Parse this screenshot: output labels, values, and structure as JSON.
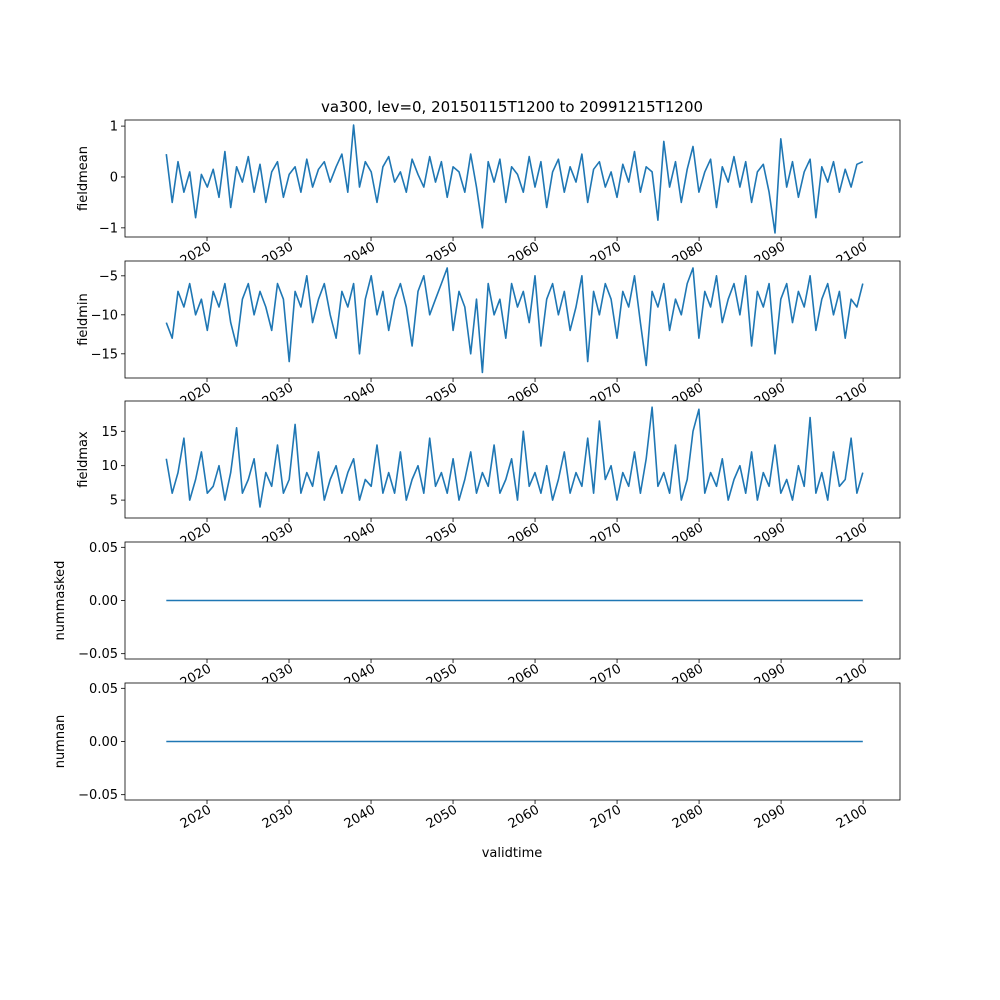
{
  "chart_data": {
    "type": "line",
    "title": "va300, lev=0, 20150115T1200 to 20991215T1200",
    "xlabel": "validtime",
    "x_range": [
      2015.04,
      2099.96
    ],
    "xlim": [
      2010.0,
      2104.5
    ],
    "xticks": [
      2020,
      2030,
      2040,
      2050,
      2060,
      2070,
      2080,
      2090,
      2100
    ],
    "xtick_labels": [
      "2020",
      "2030",
      "2040",
      "2050",
      "2060",
      "2070",
      "2080",
      "2090",
      "2100"
    ],
    "color": "#1f77b4",
    "panels": [
      {
        "ylabel": "fieldmean",
        "ylim": [
          -1.18,
          1.12
        ],
        "yticks": [
          1,
          0,
          -1
        ],
        "ytick_labels": [
          "1",
          "0",
          "−1"
        ],
        "values": [
          0.45,
          -0.5,
          0.3,
          -0.3,
          0.1,
          -0.8,
          0.05,
          -0.2,
          0.15,
          -0.4,
          0.5,
          -0.6,
          0.2,
          -0.1,
          0.4,
          -0.3,
          0.25,
          -0.5,
          0.1,
          0.3,
          -0.4,
          0.05,
          0.2,
          -0.3,
          0.35,
          -0.2,
          0.15,
          0.3,
          -0.1,
          0.2,
          0.45,
          -0.3,
          1.02,
          -0.2,
          0.3,
          0.1,
          -0.5,
          0.2,
          0.4,
          -0.1,
          0.1,
          -0.3,
          0.35,
          0.05,
          -0.2,
          0.4,
          -0.1,
          0.3,
          -0.4,
          0.2,
          0.1,
          -0.3,
          0.45,
          -0.2,
          -1.0,
          0.3,
          -0.1,
          0.35,
          -0.5,
          0.2,
          0.05,
          -0.3,
          0.4,
          -0.2,
          0.3,
          -0.6,
          0.1,
          0.35,
          -0.3,
          0.2,
          -0.1,
          0.45,
          -0.5,
          0.15,
          0.3,
          -0.2,
          0.1,
          -0.4,
          0.25,
          -0.1,
          0.5,
          -0.3,
          0.2,
          0.1,
          -0.85,
          0.7,
          -0.2,
          0.3,
          -0.5,
          0.15,
          0.6,
          -0.3,
          0.1,
          0.35,
          -0.6,
          0.2,
          -0.1,
          0.4,
          -0.2,
          0.3,
          -0.5,
          0.1,
          0.25,
          -0.3,
          -1.1,
          0.75,
          -0.2,
          0.3,
          -0.4,
          0.1,
          0.35,
          -0.8,
          0.2,
          -0.1,
          0.3,
          -0.3,
          0.15,
          -0.2,
          0.25,
          0.3
        ]
      },
      {
        "ylabel": "fieldmin",
        "ylim": [
          -18.1,
          -3.1
        ],
        "yticks": [
          -5,
          -10,
          -15
        ],
        "ytick_labels": [
          "−5",
          "−10",
          "−15"
        ],
        "values": [
          -11,
          -13,
          -7,
          -9,
          -6,
          -10,
          -8,
          -12,
          -7,
          -9,
          -6,
          -11,
          -14,
          -8,
          -6,
          -10,
          -7,
          -9,
          -12,
          -6,
          -8,
          -16,
          -7,
          -9,
          -5,
          -11,
          -8,
          -6,
          -10,
          -13,
          -7,
          -9,
          -6,
          -15,
          -8,
          -5,
          -10,
          -7,
          -12,
          -8,
          -6,
          -9,
          -14,
          -7,
          -5,
          -10,
          -8,
          -6,
          -4,
          -12,
          -7,
          -9,
          -15,
          -8,
          -17.4,
          -6,
          -10,
          -8,
          -13,
          -6,
          -9,
          -7,
          -11,
          -5,
          -14,
          -8,
          -6,
          -10,
          -7,
          -12,
          -9,
          -5,
          -16,
          -7,
          -10,
          -6,
          -8,
          -13,
          -7,
          -9,
          -5,
          -11,
          -16.5,
          -7,
          -9,
          -6,
          -12,
          -8,
          -10,
          -6,
          -4,
          -13,
          -7,
          -9,
          -5,
          -11,
          -8,
          -6,
          -10,
          -5,
          -14,
          -7,
          -9,
          -6,
          -15,
          -8,
          -6,
          -11,
          -7,
          -9,
          -5,
          -12,
          -8,
          -6,
          -10,
          -7,
          -13,
          -8,
          -9,
          -6
        ]
      },
      {
        "ylabel": "fieldmax",
        "ylim": [
          2.4,
          19.4
        ],
        "yticks": [
          15,
          10,
          5
        ],
        "ytick_labels": [
          "15",
          "10",
          "5"
        ],
        "values": [
          11,
          6,
          9,
          14,
          5,
          8,
          12,
          6,
          7,
          10,
          5,
          9,
          15.5,
          6,
          8,
          11,
          4,
          9,
          7,
          13,
          6,
          8,
          16,
          6,
          9,
          7,
          12,
          5,
          8,
          10,
          6,
          9,
          11,
          5,
          8,
          7,
          13,
          6,
          9,
          6,
          12,
          5,
          8,
          10,
          6,
          14,
          7,
          9,
          6,
          11,
          5,
          8,
          12,
          6,
          9,
          7,
          13,
          6,
          8,
          11,
          5,
          15,
          7,
          9,
          6,
          10,
          5,
          8,
          12,
          6,
          9,
          7,
          14,
          6,
          16.5,
          8,
          10,
          5,
          9,
          7,
          12,
          6,
          11,
          18.5,
          7,
          9,
          6,
          13,
          5,
          8,
          15,
          18.2,
          6,
          9,
          7,
          11,
          5,
          8,
          10,
          6,
          12,
          5,
          9,
          7,
          13,
          6,
          8,
          5,
          10,
          7,
          17,
          6,
          9,
          5,
          12,
          7,
          8,
          14,
          6,
          9
        ]
      },
      {
        "ylabel": "nummasked",
        "ylim": [
          -0.055,
          0.055
        ],
        "yticks": [
          0.05,
          0.0,
          -0.05
        ],
        "ytick_labels": [
          "0.05",
          "0.00",
          "−0.05"
        ],
        "values": [
          0,
          0
        ]
      },
      {
        "ylabel": "numnan",
        "ylim": [
          -0.055,
          0.055
        ],
        "yticks": [
          0.05,
          0.0,
          -0.05
        ],
        "ytick_labels": [
          "0.05",
          "0.00",
          "−0.05"
        ],
        "values": [
          0,
          0
        ]
      }
    ]
  }
}
